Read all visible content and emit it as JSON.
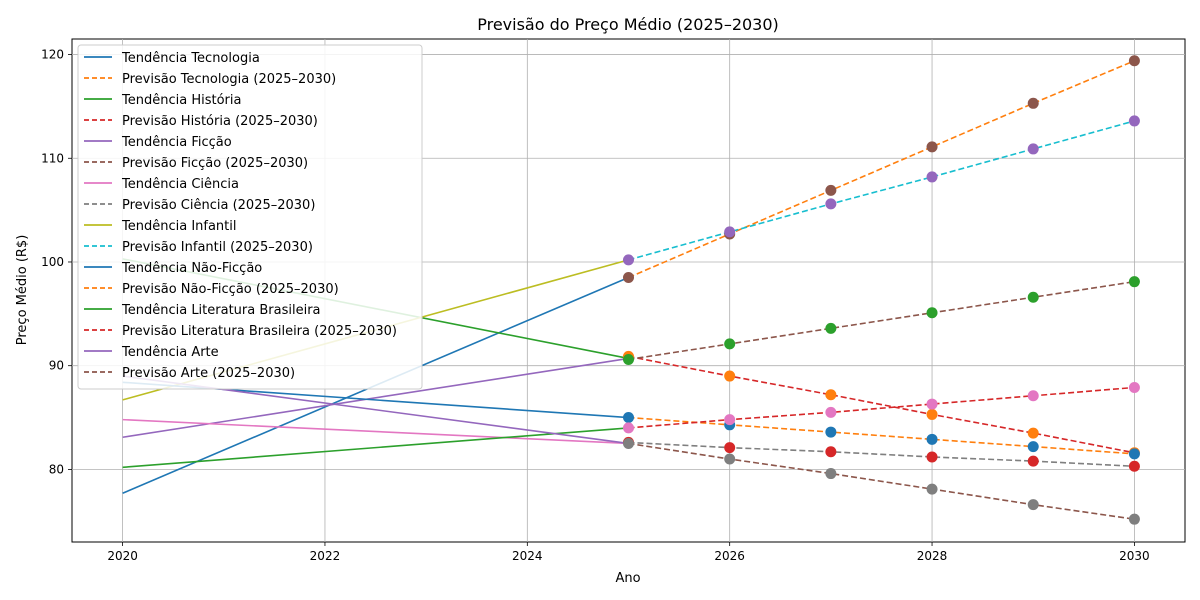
{
  "chart_data": {
    "type": "line",
    "title": "Previsão do Preço Médio (2025–2030)",
    "xlabel": "Ano",
    "ylabel": "Preço Médio (R$)",
    "xlim": [
      2019.5,
      2030.5
    ],
    "ylim": [
      73,
      121.5
    ],
    "xticks": [
      2020,
      2022,
      2024,
      2026,
      2028,
      2030
    ],
    "yticks": [
      80,
      90,
      100,
      110,
      120
    ],
    "grid": true,
    "legend_position": "top-left",
    "forecast_x": [
      2025,
      2026,
      2027,
      2028,
      2029,
      2030
    ],
    "series": [
      {
        "name": "Tendência Tecnologia",
        "color": "#1f77b4",
        "dash": false,
        "x": [
          2020,
          2025
        ],
        "y": [
          77.7,
          98.5
        ]
      },
      {
        "name": "Previsão Tecnologia (2025–2030)",
        "color": "#ff7f0e",
        "dash": true,
        "x": [
          2025,
          2026,
          2027,
          2028,
          2029,
          2030
        ],
        "y": [
          98.5,
          102.7,
          106.9,
          111.1,
          115.3,
          119.4
        ],
        "marker_color": "#8c564b"
      },
      {
        "name": "Tendência História",
        "color": "#2ca02c",
        "dash": false,
        "x": [
          2020,
          2025
        ],
        "y": [
          100.3,
          90.7
        ]
      },
      {
        "name": "Previsão História (2025–2030)",
        "color": "#d62728",
        "dash": true,
        "x": [
          2025,
          2026,
          2027,
          2028,
          2029,
          2030
        ],
        "y": [
          90.9,
          89.0,
          87.2,
          85.3,
          83.5,
          81.6
        ],
        "marker_color": "#ff7f0e"
      },
      {
        "name": "Tendência Ficção",
        "color": "#9467bd",
        "dash": false,
        "x": [
          2020,
          2025
        ],
        "y": [
          83.1,
          90.7
        ]
      },
      {
        "name": "Previsão Ficção (2025–2030)",
        "color": "#8c564b",
        "dash": true,
        "x": [
          2025,
          2026,
          2027,
          2028,
          2029,
          2030
        ],
        "y": [
          90.6,
          92.1,
          93.6,
          95.1,
          96.6,
          98.1
        ],
        "marker_color": "#2ca02c"
      },
      {
        "name": "Tendência Ciência",
        "color": "#e377c2",
        "dash": false,
        "x": [
          2020,
          2025
        ],
        "y": [
          84.8,
          82.5
        ]
      },
      {
        "name": "Previsão Ciência (2025–2030)",
        "color": "#7f7f7f",
        "dash": true,
        "x": [
          2025,
          2026,
          2027,
          2028,
          2029,
          2030
        ],
        "y": [
          82.6,
          82.1,
          81.7,
          81.2,
          80.8,
          80.3
        ],
        "marker_color": "#d62728"
      },
      {
        "name": "Tendência Infantil",
        "color": "#bcbd22",
        "dash": false,
        "x": [
          2020,
          2025
        ],
        "y": [
          86.7,
          100.2
        ]
      },
      {
        "name": "Previsão Infantil (2025–2030)",
        "color": "#17becf",
        "dash": true,
        "x": [
          2025,
          2026,
          2027,
          2028,
          2029,
          2030
        ],
        "y": [
          100.2,
          102.9,
          105.6,
          108.2,
          110.9,
          113.6
        ],
        "marker_color": "#9467bd"
      },
      {
        "name": "Tendência Não-Ficção",
        "color": "#1f77b4",
        "dash": false,
        "x": [
          2020,
          2025
        ],
        "y": [
          88.4,
          85.0
        ]
      },
      {
        "name": "Previsão Não-Ficção (2025–2030)",
        "color": "#ff7f0e",
        "dash": true,
        "x": [
          2025,
          2026,
          2027,
          2028,
          2029,
          2030
        ],
        "y": [
          85.0,
          84.3,
          83.6,
          82.9,
          82.2,
          81.5
        ],
        "marker_color": "#1f77b4"
      },
      {
        "name": "Tendência Literatura Brasileira",
        "color": "#2ca02c",
        "dash": false,
        "x": [
          2020,
          2025
        ],
        "y": [
          80.2,
          84.0
        ]
      },
      {
        "name": "Previsão Literatura Brasileira (2025–2030)",
        "color": "#d62728",
        "dash": true,
        "x": [
          2025,
          2026,
          2027,
          2028,
          2029,
          2030
        ],
        "y": [
          84.0,
          84.8,
          85.5,
          86.3,
          87.1,
          87.9
        ],
        "marker_color": "#e377c2"
      },
      {
        "name": "Tendência Arte",
        "color": "#9467bd",
        "dash": false,
        "x": [
          2020,
          2025
        ],
        "y": [
          89.0,
          82.5
        ]
      },
      {
        "name": "Previsão Arte (2025–2030)",
        "color": "#8c564b",
        "dash": true,
        "x": [
          2025,
          2026,
          2027,
          2028,
          2029,
          2030
        ],
        "y": [
          82.5,
          81.0,
          79.6,
          78.1,
          76.6,
          75.2
        ],
        "marker_color": "#7f7f7f"
      }
    ]
  }
}
